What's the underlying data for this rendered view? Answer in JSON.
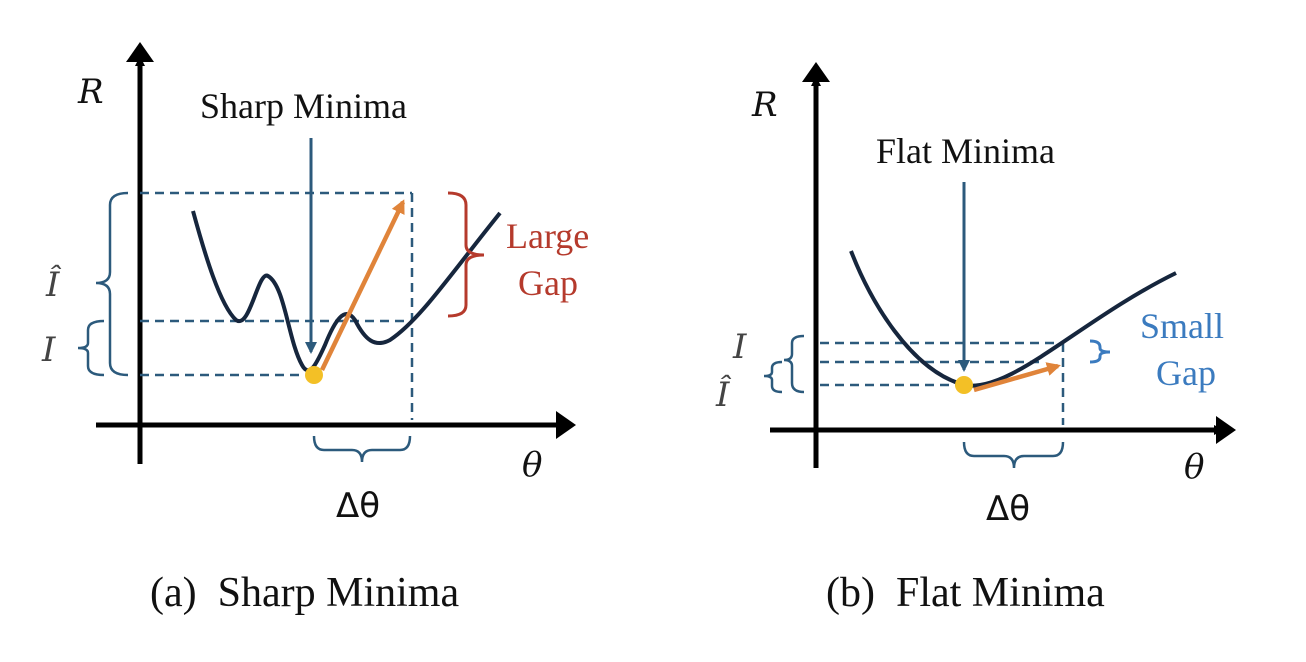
{
  "panel_a": {
    "y_axis_label": "R",
    "x_axis_label": "θ",
    "annotation": "Sharp Minima",
    "gap_label_line1": "Large",
    "gap_label_line2": "Gap",
    "i_hat_label": "Î",
    "i_label": "I",
    "delta_label": "Δθ",
    "caption": "(a)  Sharp Minima"
  },
  "panel_b": {
    "y_axis_label": "R",
    "x_axis_label": "θ",
    "annotation": "Flat Minima",
    "gap_label_line1": "Small",
    "gap_label_line2": "Gap",
    "i_label": "I",
    "i_hat_label": "Î",
    "delta_label": "Δθ",
    "caption": "(b)  Flat Minima"
  },
  "colors": {
    "curve": "#16263d",
    "dashed_lines": "#2c5a7c",
    "step_arrow": "#e0843a",
    "minimum_point": "#f3c026",
    "large_gap": "#b53a2c",
    "small_gap": "#3b7bbf"
  }
}
